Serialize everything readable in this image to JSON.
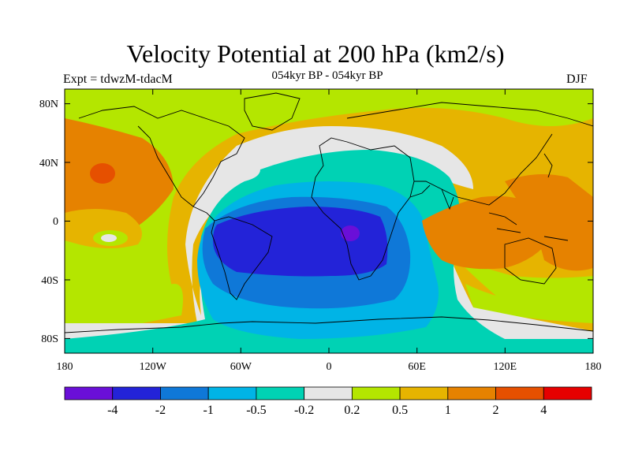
{
  "title": "Velocity Potential at 200 hPa (km2/s)",
  "subtitle": "054kyr BP - 054kyr BP",
  "experiment": "Expt = tdwzM-tdacM",
  "season": "DJF",
  "map": {
    "projection": "cylindrical equidistant",
    "lon_range": [
      -180,
      180
    ],
    "lat_range": [
      -90,
      90
    ],
    "lon_ticks": [
      "180",
      "120W",
      "60W",
      "0",
      "60E",
      "120E",
      "180"
    ],
    "lat_ticks": [
      "80N",
      "40N",
      "0",
      "40S",
      "80S"
    ]
  },
  "colorbar": {
    "labels": [
      "-4",
      "-2",
      "-1",
      "-0.5",
      "-0.2",
      "0.2",
      "0.5",
      "1",
      "2",
      "4"
    ],
    "colors": [
      "#6a0fd8",
      "#2323d8",
      "#0f78d8",
      "#00b4e6",
      "#00d2b4",
      "#e6e6e6",
      "#b4e600",
      "#e6b400",
      "#e68200",
      "#e65000",
      "#e60000"
    ]
  }
}
